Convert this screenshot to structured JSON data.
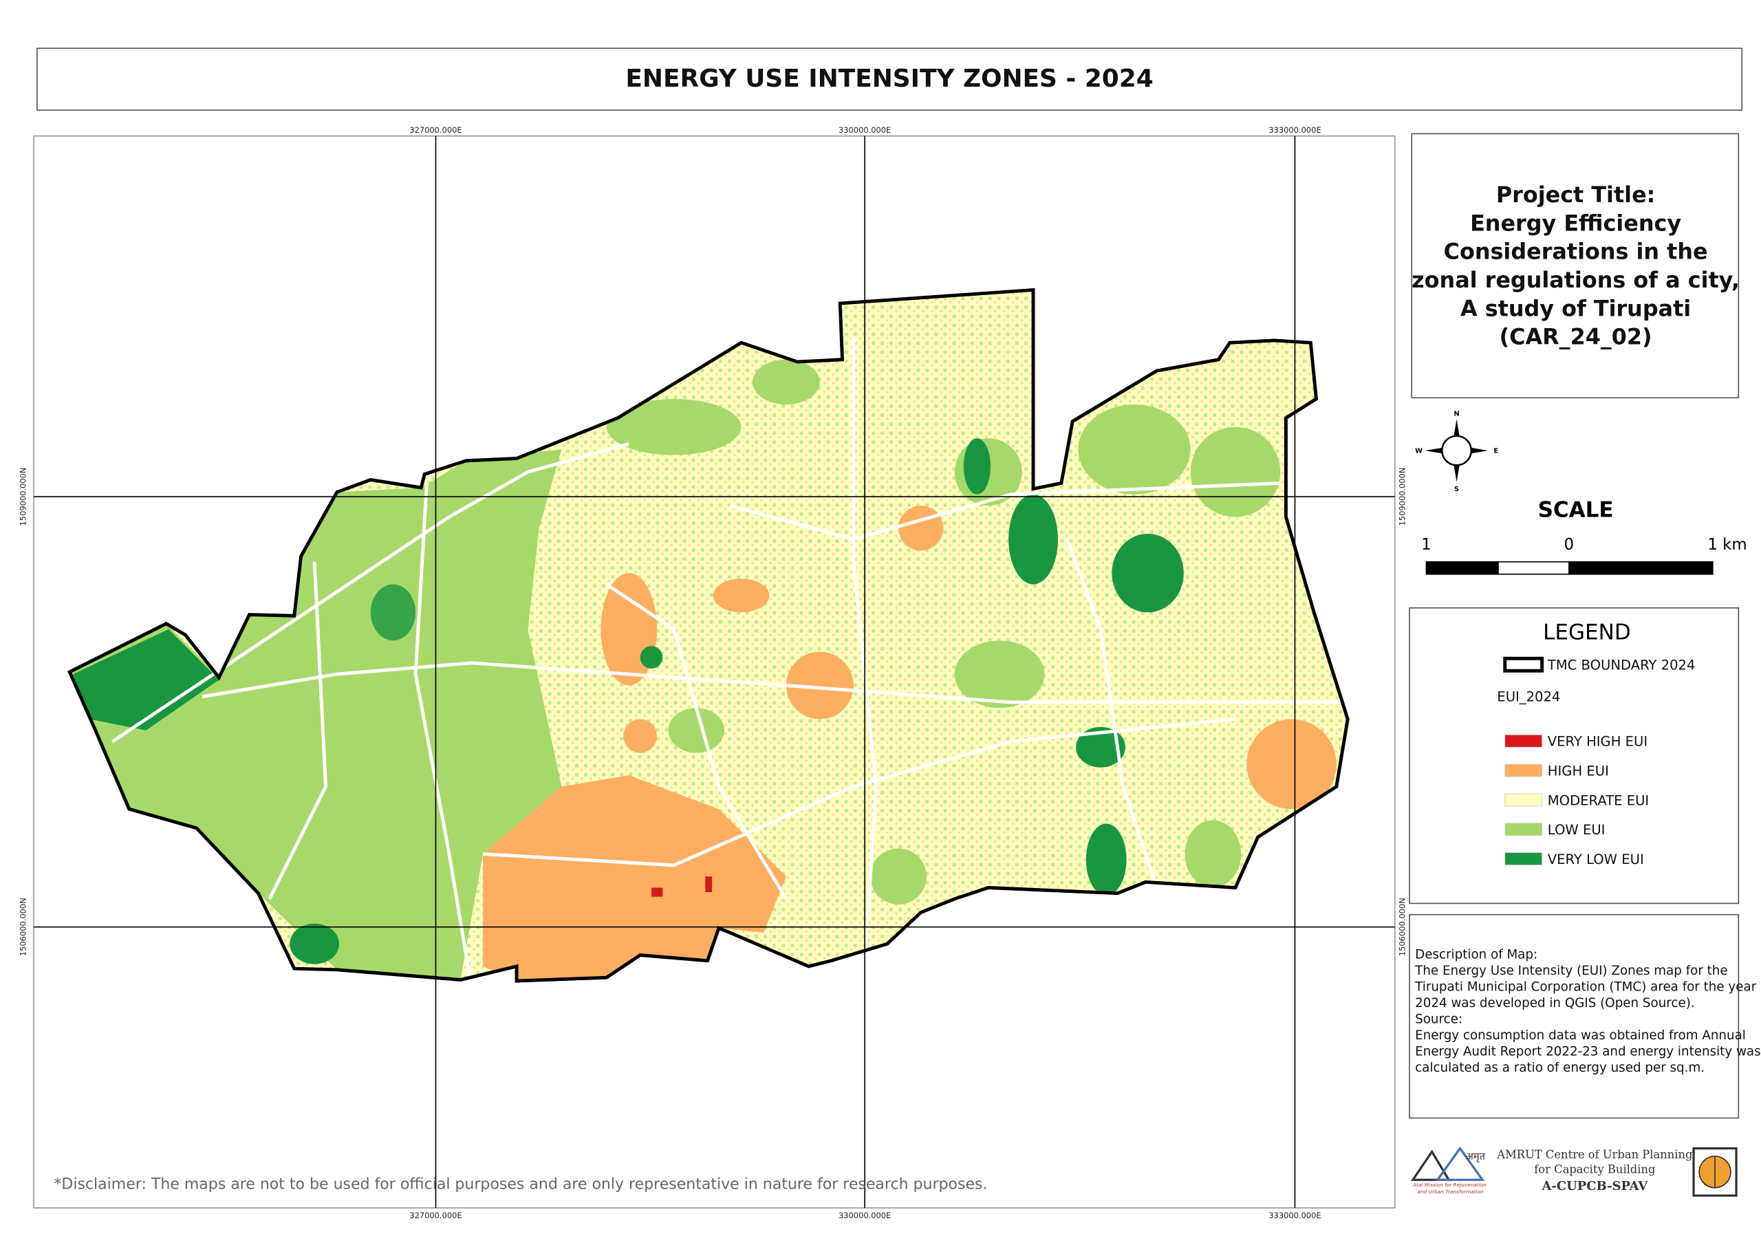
{
  "title": "ENERGY USE INTENSITY ZONES - 2024",
  "grid": {
    "top_labels": [
      "327000.000E",
      "330000.000E",
      "333000.000E"
    ],
    "bottom_labels": [
      "327000.000E",
      "330000.000E",
      "333000.000E"
    ],
    "left_labels": [
      "1509000.000N",
      "1506000.000N"
    ],
    "right_labels": [
      "1509000.000N",
      "1506000.000N"
    ]
  },
  "project": {
    "lines": [
      "Project Title:",
      "Energy Efficiency",
      "Considerations in the",
      "zonal regulations of a city,",
      "A study of Tirupati",
      "(CAR_24_02)"
    ]
  },
  "north_arrow": {
    "n": "N",
    "s": "S",
    "e": "E",
    "w": "W"
  },
  "scale": {
    "title": "SCALE",
    "labels": [
      "1",
      "0",
      "1 km"
    ]
  },
  "legend": {
    "title": "LEGEND",
    "boundary": "TMC BOUNDARY 2024",
    "group": "EUI_2024",
    "items": [
      {
        "label": "VERY HIGH EUI",
        "color": "#d7191c"
      },
      {
        "label": "HIGH EUI",
        "color": "#fdae61"
      },
      {
        "label": "MODERATE EUI",
        "color": "#ffffc0"
      },
      {
        "label": "LOW EUI",
        "color": "#a6d96a"
      },
      {
        "label": "VERY LOW EUI",
        "color": "#1a9641"
      }
    ]
  },
  "description": {
    "lines": [
      "Description of Map:",
      "The Energy Use Intensity (EUI) Zones map for the",
      "Tirupati Municipal Corporation (TMC) area for the year",
      "2024 was developed in QGIS (Open Source).",
      "Source:",
      "Energy consumption data was obtained from Annual",
      "Energy Audit Report 2022-23 and energy intensity was",
      "calculated as a ratio of energy used per sq.m."
    ]
  },
  "disclaimer": "*Disclaimer: The maps are not to be used for official purposes and are only representative in nature for research purposes.",
  "logos": {
    "amrut_hindi": "अमृत",
    "amrut_caption": [
      "Atal Mission for Rejuvenation",
      "and Urban Transformation"
    ],
    "centre": [
      "AMRUT Centre of Urban Planning",
      "for Capacity Building",
      "A-CUPCB-SPAV"
    ]
  }
}
